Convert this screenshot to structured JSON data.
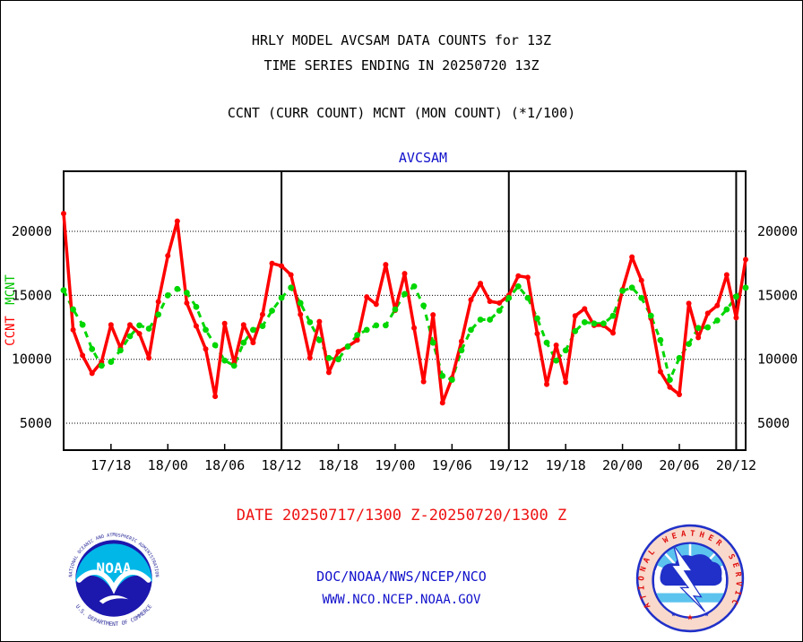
{
  "page": {
    "title1": "HRLY MODEL AVCSAM DATA COUNTS for 13Z",
    "title2": "TIME SERIES ENDING IN 20250720 13Z",
    "subtitle": "CCNT (CURR COUNT) MCNT (MON COUNT) (*1/100)"
  },
  "chart_data": {
    "type": "line",
    "title": "AVCSAM",
    "title_color": "#1111cc",
    "x_start": "20250717 13Z",
    "x_end": "20250720 13Z",
    "x_interval": "1 hour",
    "n_points": 73,
    "ylim": [
      2900,
      24700
    ],
    "yticks": [
      5000,
      10000,
      15000,
      20000
    ],
    "grid": "dotted horizontal at yticks",
    "x_ticks": [
      {
        "hour": 5,
        "label": "17/18"
      },
      {
        "hour": 11,
        "label": "18/00"
      },
      {
        "hour": 17,
        "label": "18/06"
      },
      {
        "hour": 23,
        "label": "18/12"
      },
      {
        "hour": 29,
        "label": "18/18"
      },
      {
        "hour": 35,
        "label": "19/00"
      },
      {
        "hour": 41,
        "label": "19/06"
      },
      {
        "hour": 47,
        "label": "19/12"
      },
      {
        "hour": 53,
        "label": "19/18"
      },
      {
        "hour": 59,
        "label": "20/00"
      },
      {
        "hour": 65,
        "label": "20/06"
      },
      {
        "hour": 71,
        "label": "20/12"
      }
    ],
    "divider_hours": [
      23,
      47,
      71
    ],
    "left_axis_titles": [
      {
        "text": "MCNT",
        "color": "#00c400"
      },
      {
        "text": "CCNT",
        "color": "#ff0000"
      }
    ],
    "series": [
      {
        "name": "CCNT",
        "color": "#ff0000",
        "style": "solid",
        "values": [
          21400,
          12300,
          10300,
          8900,
          9800,
          12700,
          10900,
          12700,
          12000,
          10100,
          14500,
          18100,
          20800,
          14400,
          12600,
          10800,
          7100,
          12800,
          9700,
          12700,
          11300,
          13500,
          17500,
          17300,
          16600,
          13500,
          10100,
          12950,
          8970,
          10600,
          11000,
          11500,
          14880,
          14300,
          17400,
          13830,
          16700,
          12450,
          8250,
          13480,
          6600,
          8530,
          11400,
          14650,
          15930,
          14530,
          14400,
          15000,
          16520,
          16400,
          12000,
          8040,
          11100,
          8200,
          13400,
          13950,
          12650,
          12650,
          12060,
          15450,
          18000,
          16170,
          13200,
          9030,
          7820,
          7250,
          14370,
          11700,
          13600,
          14200,
          16600,
          13250,
          17800
        ]
      },
      {
        "name": "MCNT",
        "color": "#00d600",
        "style": "dashed",
        "values": [
          15400,
          13900,
          12700,
          10800,
          9500,
          9800,
          10700,
          11800,
          12650,
          12400,
          13500,
          15000,
          15500,
          15200,
          14100,
          12300,
          11100,
          9900,
          9500,
          11300,
          12300,
          12600,
          13800,
          14800,
          15600,
          14400,
          12900,
          11500,
          10100,
          10000,
          11000,
          11900,
          12300,
          12650,
          12650,
          13900,
          15100,
          15700,
          14200,
          11300,
          8700,
          8400,
          10700,
          12300,
          13100,
          13100,
          13800,
          14800,
          15700,
          14800,
          13200,
          11300,
          9900,
          10700,
          12200,
          12900,
          12800,
          12800,
          13400,
          15350,
          15600,
          14800,
          13400,
          11500,
          8400,
          10100,
          11200,
          12450,
          12500,
          13040,
          13900,
          14900,
          15600
        ]
      }
    ]
  },
  "footer": {
    "date_range": "DATE 20250717/1300 Z-20250720/1300 Z",
    "org": "DOC/NOAA/NWS/NCEP/NCO",
    "url": "WWW.NCO.NCEP.NOAA.GOV"
  },
  "logos": {
    "noaa": {
      "center_text": "NOAA",
      "ring_top": "NATIONAL OCEANIC AND ATMOSPHERIC ADMINISTRATION",
      "ring_bottom": "U.S. DEPARTMENT OF COMMERCE",
      "navy": "#1c17ad",
      "cyan": "#00b7e8"
    },
    "nws": {
      "ring_text": "NATIONAL WEATHER SERVICE",
      "ring_bg": "#f8d9cb",
      "ring_text_color": "#e01010",
      "blue": "#2030c8",
      "sky": "#5cc3ee"
    }
  }
}
